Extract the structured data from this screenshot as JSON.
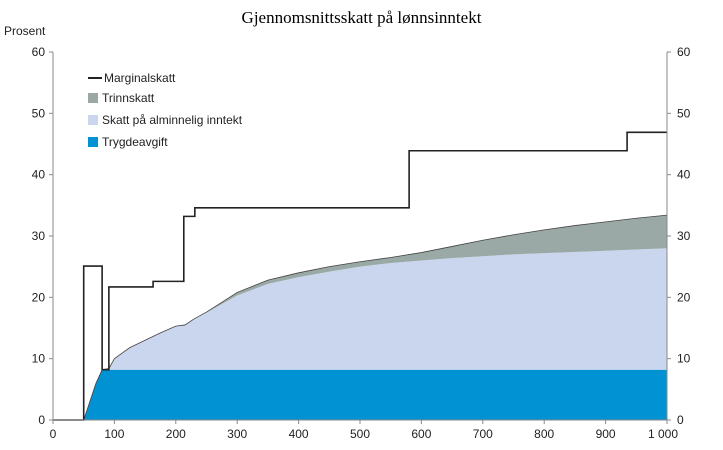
{
  "chart_data": {
    "type": "area",
    "title": "Gjennomsnittsskatt på lønnsinntekt",
    "ylabel": "Prosent",
    "xlabel": "",
    "xlim": [
      0,
      1000
    ],
    "ylim": [
      0,
      60
    ],
    "x_ticks": [
      "0",
      "100",
      "200",
      "300",
      "400",
      "500",
      "600",
      "700",
      "800",
      "900",
      "1 000"
    ],
    "y_ticks": [
      "0",
      "10",
      "20",
      "30",
      "40",
      "50",
      "60"
    ],
    "y_ticks_right": [
      "0",
      "10",
      "20",
      "30",
      "40",
      "50",
      "60"
    ],
    "grid": false,
    "legend_placement": "top-left",
    "colors": {
      "Marginalskatt": "#222222",
      "Trinnskatt": "#9aa9a6",
      "Skatt på alminnelig inntekt": "#c9d6ee",
      "Trygdeavgift": "#0092d2"
    },
    "x": [
      0,
      50,
      60,
      70,
      80,
      91,
      100,
      125,
      150,
      175,
      200,
      215,
      230,
      250,
      300,
      350,
      400,
      450,
      500,
      550,
      600,
      650,
      700,
      750,
      800,
      850,
      900,
      950,
      1000
    ],
    "stacked_series": [
      {
        "name": "Trygdeavgift",
        "values": [
          0,
          0,
          3,
          6,
          8.2,
          8.2,
          8.2,
          8.2,
          8.2,
          8.2,
          8.2,
          8.2,
          8.2,
          8.2,
          8.2,
          8.2,
          8.2,
          8.2,
          8.2,
          8.2,
          8.2,
          8.2,
          8.2,
          8.2,
          8.2,
          8.2,
          8.2,
          8.2,
          8.2
        ]
      },
      {
        "name": "Skatt på alminnelig inntekt",
        "values": [
          0,
          0,
          0,
          0,
          0,
          0.2,
          1.8,
          3.6,
          4.8,
          6.0,
          7.1,
          7.3,
          8.3,
          9.3,
          12.1,
          14.0,
          15.1,
          16.0,
          16.8,
          17.4,
          17.8,
          18.2,
          18.5,
          18.8,
          19.0,
          19.2,
          19.4,
          19.6,
          19.8
        ]
      },
      {
        "name": "Trinnskatt",
        "values": [
          0,
          0,
          0,
          0,
          0,
          0,
          0,
          0,
          0,
          0,
          0,
          0,
          0,
          0.1,
          0.5,
          0.6,
          0.7,
          0.8,
          0.8,
          0.9,
          1.3,
          1.9,
          2.6,
          3.2,
          3.8,
          4.3,
          4.7,
          5.1,
          5.4
        ]
      }
    ],
    "line_series": {
      "name": "Marginalskatt",
      "steps": [
        [
          0,
          0
        ],
        [
          50,
          25.1
        ],
        [
          80,
          8.2
        ],
        [
          91,
          21.7
        ],
        [
          163,
          22.6
        ],
        [
          213,
          33.2
        ],
        [
          231,
          34.6
        ],
        [
          580,
          43.9
        ],
        [
          935,
          46.9
        ],
        [
          1000,
          46.9
        ]
      ]
    }
  }
}
